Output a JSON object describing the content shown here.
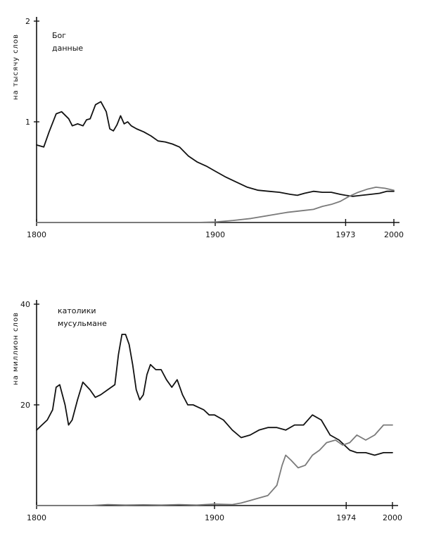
{
  "colors": {
    "primary_series": "#111111",
    "secondary_series": "#7a7a7a",
    "axis": "#111111"
  },
  "chart_data": [
    {
      "type": "line",
      "ylabel": "на тысячу слов",
      "xlim": [
        1800,
        2000
      ],
      "ylim": [
        0,
        2
      ],
      "x_ticks": [
        1800,
        1900,
        1973,
        2000
      ],
      "x_tick_labels": [
        "1800",
        "1900",
        "1973",
        "2000"
      ],
      "y_ticks": [
        1,
        2
      ],
      "y_tick_labels": [
        "1",
        "2"
      ],
      "legend": [
        "Бог",
        "данные"
      ],
      "legend_position": "top-left",
      "grid": false,
      "series": [
        {
          "name": "Бог",
          "color": "#111111",
          "x": [
            1800,
            1804,
            1807,
            1811,
            1814,
            1818,
            1820,
            1823,
            1826,
            1828,
            1830,
            1833,
            1836,
            1839,
            1841,
            1843,
            1845,
            1847,
            1849,
            1851,
            1853,
            1856,
            1860,
            1864,
            1868,
            1872,
            1876,
            1880,
            1885,
            1890,
            1895,
            1900,
            1906,
            1912,
            1918,
            1924,
            1930,
            1936,
            1942,
            1946,
            1950,
            1955,
            1960,
            1965,
            1970,
            1973,
            1977,
            1982,
            1987,
            1992,
            1996,
            2000
          ],
          "y": [
            0.77,
            0.75,
            0.9,
            1.08,
            1.1,
            1.03,
            0.96,
            0.98,
            0.96,
            1.02,
            1.03,
            1.17,
            1.2,
            1.1,
            0.93,
            0.91,
            0.97,
            1.06,
            0.98,
            1.0,
            0.96,
            0.93,
            0.9,
            0.86,
            0.81,
            0.8,
            0.78,
            0.75,
            0.66,
            0.6,
            0.56,
            0.51,
            0.45,
            0.4,
            0.35,
            0.32,
            0.31,
            0.3,
            0.28,
            0.27,
            0.29,
            0.31,
            0.3,
            0.3,
            0.28,
            0.27,
            0.26,
            0.27,
            0.28,
            0.29,
            0.31,
            0.31
          ]
        },
        {
          "name": "данные",
          "color": "#7a7a7a",
          "x": [
            1800,
            1850,
            1890,
            1900,
            1910,
            1920,
            1930,
            1940,
            1950,
            1955,
            1960,
            1965,
            1970,
            1975,
            1980,
            1985,
            1990,
            1995,
            2000
          ],
          "y": [
            0.0,
            0.0,
            0.0,
            0.005,
            0.02,
            0.04,
            0.07,
            0.1,
            0.12,
            0.13,
            0.16,
            0.18,
            0.21,
            0.26,
            0.3,
            0.33,
            0.35,
            0.34,
            0.32
          ]
        }
      ]
    },
    {
      "type": "line",
      "ylabel": "на миллион слов",
      "xlim": [
        1800,
        2000
      ],
      "ylim": [
        0,
        40
      ],
      "x_ticks": [
        1800,
        1900,
        1974,
        2000
      ],
      "x_tick_labels": [
        "1800",
        "1900",
        "1974",
        "2000"
      ],
      "y_ticks": [
        20,
        40
      ],
      "y_tick_labels": [
        "20",
        "40"
      ],
      "legend": [
        "католики",
        "мусульмане"
      ],
      "legend_position": "top-left",
      "grid": false,
      "series": [
        {
          "name": "католики",
          "color": "#111111",
          "x": [
            1800,
            1803,
            1806,
            1809,
            1811,
            1813,
            1816,
            1818,
            1820,
            1823,
            1826,
            1830,
            1833,
            1836,
            1840,
            1844,
            1846,
            1848,
            1850,
            1852,
            1854,
            1856,
            1858,
            1860,
            1862,
            1864,
            1867,
            1870,
            1873,
            1876,
            1879,
            1882,
            1885,
            1888,
            1891,
            1894,
            1897,
            1900,
            1905,
            1910,
            1915,
            1920,
            1925,
            1930,
            1935,
            1940,
            1945,
            1950,
            1955,
            1960,
            1965,
            1970,
            1973,
            1976,
            1980,
            1985,
            1990,
            1995,
            2000
          ],
          "y": [
            15,
            16,
            17,
            19,
            23.5,
            24,
            20,
            16,
            17,
            21,
            24.5,
            23,
            21.5,
            22,
            23,
            24,
            30,
            34,
            34,
            32,
            28,
            23,
            21,
            22,
            26,
            28,
            27,
            27,
            25,
            23.5,
            25,
            22,
            20,
            20,
            19.5,
            19,
            18,
            18,
            17,
            15,
            13.5,
            14,
            15,
            15.5,
            15.5,
            15,
            16,
            16,
            18,
            17,
            14,
            13,
            12,
            11,
            10.5,
            10.5,
            10,
            10.5,
            10.5
          ]
        },
        {
          "name": "мусульмане",
          "color": "#7a7a7a",
          "x": [
            1800,
            1830,
            1840,
            1850,
            1860,
            1870,
            1880,
            1890,
            1900,
            1910,
            1915,
            1920,
            1925,
            1930,
            1935,
            1938,
            1940,
            1943,
            1947,
            1951,
            1955,
            1959,
            1963,
            1968,
            1972,
            1976,
            1980,
            1985,
            1990,
            1995,
            2000
          ],
          "y": [
            0,
            0,
            0.2,
            0.1,
            0.15,
            0.1,
            0.2,
            0.1,
            0.3,
            0.2,
            0.5,
            1,
            1.5,
            2,
            4,
            8,
            10,
            9,
            7.5,
            8,
            10,
            11,
            12.5,
            13,
            12,
            12.5,
            14,
            13,
            14,
            16,
            16
          ]
        }
      ]
    }
  ]
}
